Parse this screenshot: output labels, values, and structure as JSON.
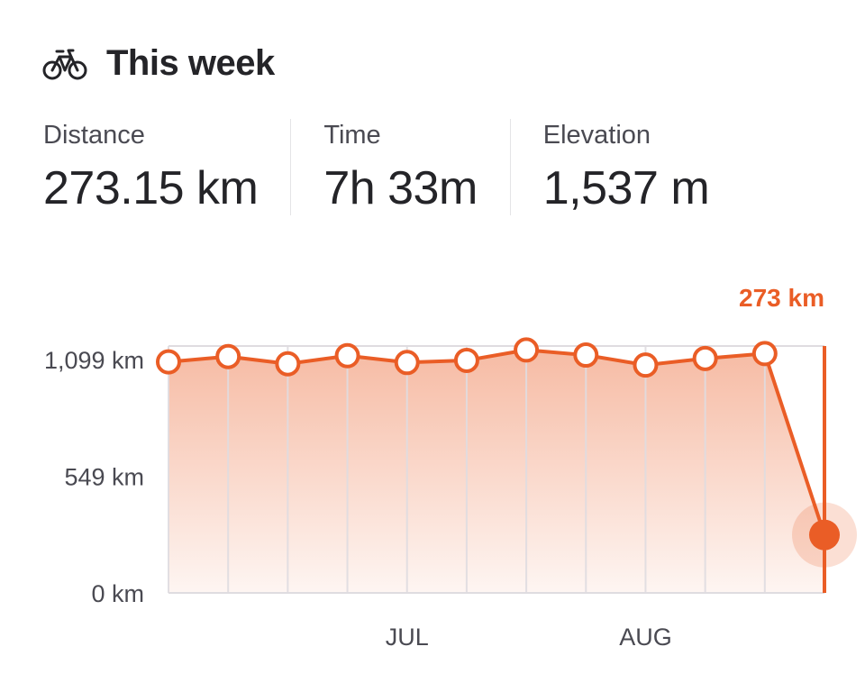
{
  "header": {
    "title": "This week",
    "icon": "bicycle-icon"
  },
  "stats": [
    {
      "label": "Distance",
      "value": "273.15 km"
    },
    {
      "label": "Time",
      "value": "7h 33m"
    },
    {
      "label": "Elevation",
      "value": "1,537 m"
    }
  ],
  "colors": {
    "accent": "#ea5d26",
    "text": "#242428",
    "muted": "#4a4a52",
    "grid": "#dfdce0"
  },
  "chart_data": {
    "type": "area",
    "title": "",
    "xlabel": "",
    "ylabel": "",
    "x": [
      1,
      2,
      3,
      4,
      5,
      6,
      7,
      8,
      9,
      10,
      11,
      12
    ],
    "x_tick_labels": [
      {
        "at": 5,
        "label": "JUL"
      },
      {
        "at": 9,
        "label": "AUG"
      }
    ],
    "y_ticks": [
      {
        "value": 0,
        "label": "0 km"
      },
      {
        "value": 549,
        "label": "549 km"
      },
      {
        "value": 1099,
        "label": "1,099 km"
      }
    ],
    "ylim": [
      0,
      1099
    ],
    "series": [
      {
        "values": [
          1088,
          1113,
          1079,
          1117,
          1085,
          1095,
          1144,
          1120,
          1073,
          1104,
          1127,
          273
        ]
      }
    ],
    "highlight": {
      "index": 11,
      "label": "273 km"
    },
    "grid": true
  }
}
